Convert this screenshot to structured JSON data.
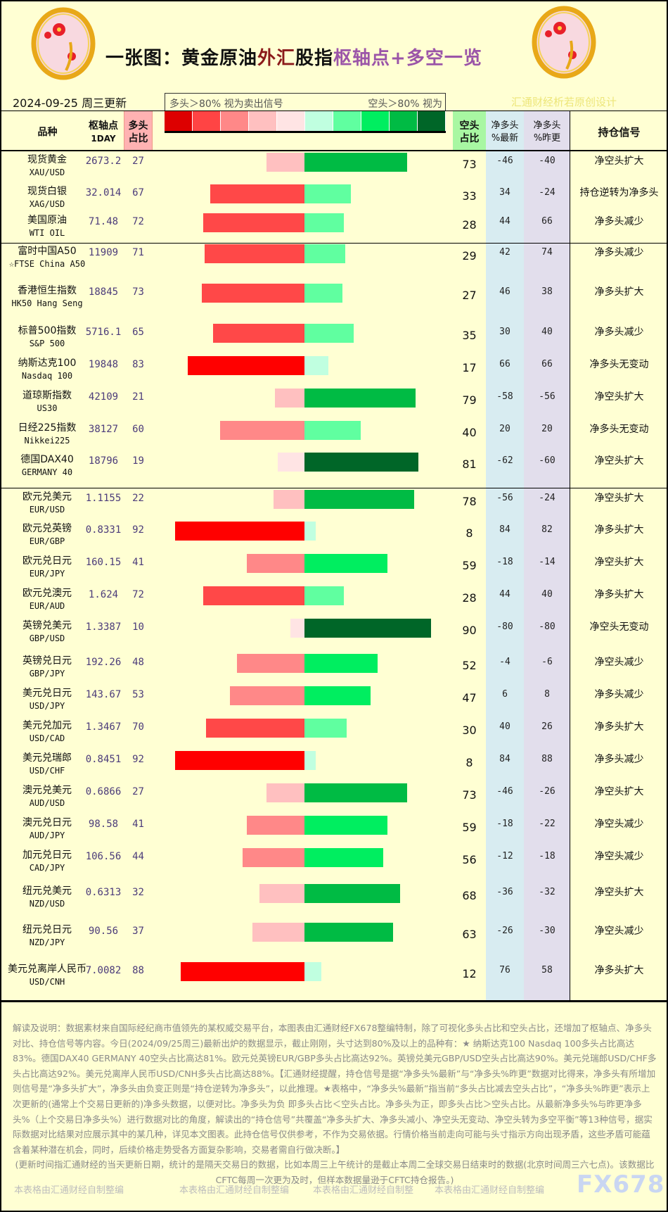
{
  "header": {
    "title_parts": [
      "一张图：黄金原油",
      "外汇",
      "股指",
      "枢轴点+多空一览"
    ],
    "date": "2024-09-25 周三更新",
    "legend_left": "多头＞80% 视为卖出信号",
    "legend_right": "空头＞80% 视为",
    "credit": "汇通财经析若原创设计",
    "legend_colors": [
      "#DD0000",
      "#FF4444",
      "#FF8888",
      "#FFC0C0",
      "#FFE4E4",
      "#C0FFE0",
      "#60FFA0",
      "#00EE60",
      "#00BB44",
      "#006628"
    ]
  },
  "columns": {
    "name": "品种",
    "pivot": [
      "枢轴点",
      "1DAY"
    ],
    "long": [
      "多头",
      "占比"
    ],
    "short": [
      "空头",
      "占比"
    ],
    "net_latest": [
      "净多头",
      "%最新"
    ],
    "net_prev": [
      "净多头",
      "%昨更"
    ],
    "signal": "持仓信号"
  },
  "rows": [
    {
      "name": "现货黄金",
      "code": "XAU/USD",
      "pivot": "2673.2",
      "long": 27,
      "short": 73,
      "net_latest": -46,
      "net_prev": -40,
      "signal": "净空头扩大"
    },
    {
      "name": "现货白银",
      "code": "XAG/USD",
      "pivot": "32.014",
      "long": 67,
      "short": 33,
      "net_latest": 34,
      "net_prev": -24,
      "signal": "持仓逆转为净多头"
    },
    {
      "name": "美国原油",
      "code": "WTI OIL",
      "pivot": "71.48",
      "long": 72,
      "short": 28,
      "net_latest": 44,
      "net_prev": 66,
      "signal": "净多头减少"
    },
    {
      "name": "富时中国A50",
      "code": "☆FTSE China A50",
      "pivot": "11909",
      "long": 71,
      "short": 29,
      "net_latest": 42,
      "net_prev": 74,
      "signal": "净多头减少"
    },
    {
      "name": "香港恒生指数",
      "code": "HK50 Hang Seng",
      "pivot": "18845",
      "long": 73,
      "short": 27,
      "net_latest": 46,
      "net_prev": 38,
      "signal": "净多头扩大"
    },
    {
      "name": "标普500指数",
      "code": "S&P 500",
      "pivot": "5716.1",
      "long": 65,
      "short": 35,
      "net_latest": 30,
      "net_prev": 40,
      "signal": "净多头减少"
    },
    {
      "name": "纳斯达克100",
      "code": "Nasdaq 100",
      "pivot": "19848",
      "long": 83,
      "short": 17,
      "net_latest": 66,
      "net_prev": 66,
      "signal": "净多头无变动"
    },
    {
      "name": "道琼斯指数",
      "code": "US30",
      "pivot": "42109",
      "long": 21,
      "short": 79,
      "net_latest": -58,
      "net_prev": -56,
      "signal": "净空头扩大"
    },
    {
      "name": "日经225指数",
      "code": "Nikkei225",
      "pivot": "38127",
      "long": 60,
      "short": 40,
      "net_latest": 20,
      "net_prev": 20,
      "signal": "净多头无变动"
    },
    {
      "name": "德国DAX40",
      "code": "GERMANY 40",
      "pivot": "18796",
      "long": 19,
      "short": 81,
      "net_latest": -62,
      "net_prev": -60,
      "signal": "净空头扩大"
    },
    {
      "name": "欧元兑美元",
      "code": "EUR/USD",
      "pivot": "1.1155",
      "long": 22,
      "short": 78,
      "net_latest": -56,
      "net_prev": -24,
      "signal": "净空头扩大"
    },
    {
      "name": "欧元兑英镑",
      "code": "EUR/GBP",
      "pivot": "0.8331",
      "long": 92,
      "short": 8,
      "net_latest": 84,
      "net_prev": 82,
      "signal": "净多头扩大"
    },
    {
      "name": "欧元兑日元",
      "code": "EUR/JPY",
      "pivot": "160.15",
      "long": 41,
      "short": 59,
      "net_latest": -18,
      "net_prev": -14,
      "signal": "净空头扩大"
    },
    {
      "name": "欧元兑澳元",
      "code": "EUR/AUD",
      "pivot": "1.624",
      "long": 72,
      "short": 28,
      "net_latest": 44,
      "net_prev": 40,
      "signal": "净多头扩大"
    },
    {
      "name": "英镑兑美元",
      "code": "GBP/USD",
      "pivot": "1.3387",
      "long": 10,
      "short": 90,
      "net_latest": -80,
      "net_prev": -80,
      "signal": "净空头无变动"
    },
    {
      "name": "英镑兑日元",
      "code": "GBP/JPY",
      "pivot": "192.26",
      "long": 48,
      "short": 52,
      "net_latest": -4,
      "net_prev": -6,
      "signal": "净空头减少"
    },
    {
      "name": "美元兑日元",
      "code": "USD/JPY",
      "pivot": "143.67",
      "long": 53,
      "short": 47,
      "net_latest": 6,
      "net_prev": 8,
      "signal": "净多头减少"
    },
    {
      "name": "美元兑加元",
      "code": "USD/CAD",
      "pivot": "1.3467",
      "long": 70,
      "short": 30,
      "net_latest": 40,
      "net_prev": 26,
      "signal": "净多头扩大"
    },
    {
      "name": "美元兑瑞郎",
      "code": "USD/CHF",
      "pivot": "0.8451",
      "long": 92,
      "short": 8,
      "net_latest": 84,
      "net_prev": 88,
      "signal": "净多头减少"
    },
    {
      "name": "澳元兑美元",
      "code": "AUD/USD",
      "pivot": "0.6866",
      "long": 27,
      "short": 73,
      "net_latest": -46,
      "net_prev": -26,
      "signal": "净空头扩大"
    },
    {
      "name": "澳元兑日元",
      "code": "AUD/JPY",
      "pivot": "98.58",
      "long": 41,
      "short": 59,
      "net_latest": -18,
      "net_prev": -22,
      "signal": "净空头减少"
    },
    {
      "name": "加元兑日元",
      "code": "CAD/JPY",
      "pivot": "106.56",
      "long": 44,
      "short": 56,
      "net_latest": -12,
      "net_prev": -18,
      "signal": "净空头减少"
    },
    {
      "name": "纽元兑美元",
      "code": "NZD/USD",
      "pivot": "0.6313",
      "long": 32,
      "short": 68,
      "net_latest": -36,
      "net_prev": -32,
      "signal": "净空头扩大"
    },
    {
      "name": "纽元兑日元",
      "code": "NZD/JPY",
      "pivot": "90.56",
      "long": 37,
      "short": 63,
      "net_latest": -26,
      "net_prev": -30,
      "signal": "净空头减少"
    },
    {
      "name": "美元兑离岸人民币",
      "code": "USD/CNH",
      "pivot": "7.0082",
      "long": 88,
      "short": 12,
      "net_latest": 76,
      "net_prev": 58,
      "signal": "净多头扩大"
    }
  ],
  "footer": {
    "explanation": "解读及说明：数据素材来自国际经纪商市值领先的某权威交易平台，本图表由汇通财经FX678整编特制，除了可视化多头占比和空头占比，还增加了枢轴点、净多头对比、持仓信号等内容。今日(2024/09/25周三)最新出炉的数据显示，截止刚刚，头寸达到80%及以上的品种有：★ 纳斯达克100 Nasdaq 100多头占比高达83%。德国DAX40 GERMANY 40空头占比高达81%。欧元兑英镑EUR/GBP多头占比高达92%。英镑兑美元GBP/USD空头占比高达90%。美元兑瑞郎USD/CHF多头占比高达92%。美元兑离岸人民币USD/CNH多头占比高达88%。【汇通财经提醒，持仓信号是据“净多头%最新”与“净多头%昨更”数据对比得来，净多头有所增加则信号是“净多头扩大”，净多头由负变正则是“持仓逆转为净多头”，以此推理。★表格中，“净多头%最新”指当前“多头占比减去空头占比”，“净多头%昨更”表示上次更新的(通常上个交易日更新的)净多头数据，以便对比。净多头为负 即多头占比＜空头占比。净多头为正，即多头占比＞空头占比。从最新净多头%与昨更净多头%（上个交易日净多头%）进行数据对比的角度，解读出的“持仓信号”共覆盖“净多头扩大、净多头减小、净空头无变动、净空头转为多空平衡”等13种信号，据实际数据对比结果对应展示其中的某几种，详见本文图表。此持仓信号仅供参考，不作为交易依据。行情价格当前走向可能与头寸指示方向出现矛盾，这些矛盾可能蕴含着某种潜在机会，同时，后续价格走势受各方面复杂影响，交易者需自行做决断。】",
    "update_note": "(更新时间指汇通财经的当天更新日期，统计的是隔天交易日的数据，比如本周三上午统计的是截止本周二全球交易日结束时的数据(北京时间周三六七点)。该数据比CFTC每周一次更为及时，但样本数据量逊于CFTC持仓报告。)",
    "watermarks": [
      "本表格由汇通财经自制整编",
      "本表格由汇通财经自制整编",
      "本表格由汇通财经自制整",
      "本表格由汇通财经自制整编"
    ],
    "brand": "FX678"
  }
}
